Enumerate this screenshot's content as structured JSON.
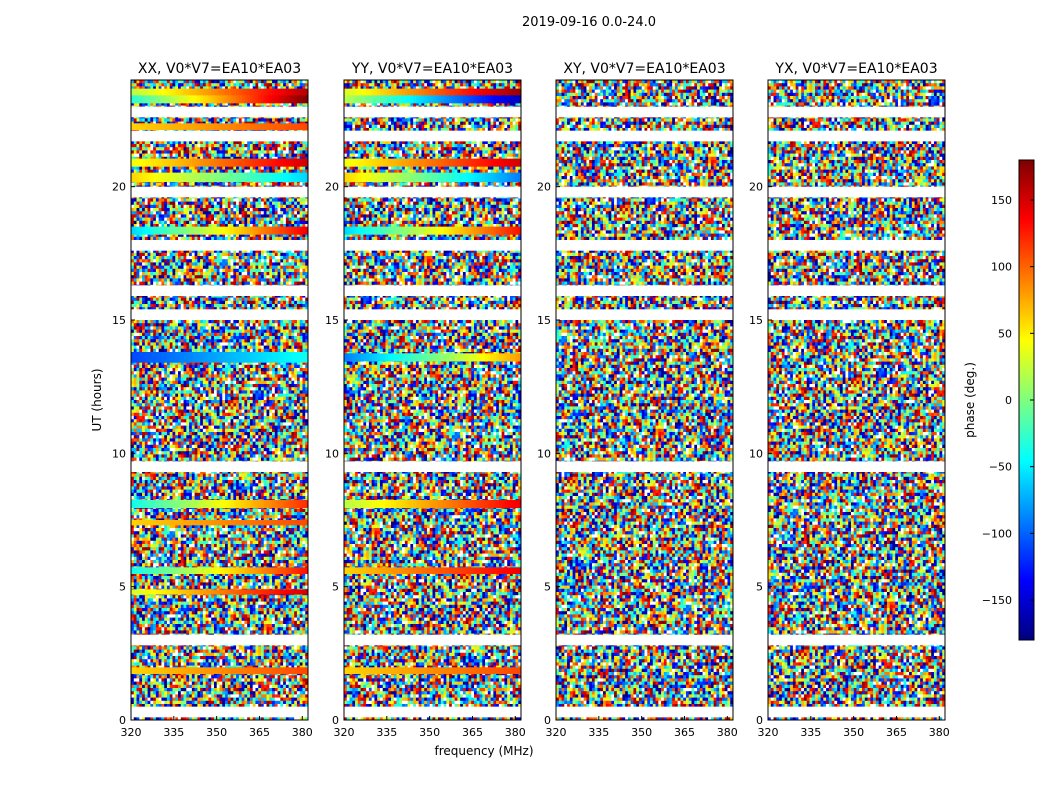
{
  "suptitle": "2019-09-16 0.0-24.0",
  "xlabel": "frequency (MHz)",
  "ylabel": "UT (hours)",
  "colorbar": {
    "label": "phase (deg.)",
    "range": [
      -180,
      180
    ],
    "ticks": [
      -150,
      -100,
      -50,
      0,
      50,
      100,
      150
    ],
    "tick_labels": [
      "−150",
      "−100",
      "−50",
      "0",
      "50",
      "100",
      "150"
    ],
    "colormap": [
      "#00007f",
      "#0000ff",
      "#007fff",
      "#00ffff",
      "#7fff7f",
      "#ffff00",
      "#ff7f00",
      "#ff0000",
      "#7f0000"
    ]
  },
  "chart_data": [
    {
      "type": "heatmap",
      "title": "XX, V0*V7=EA10*EA03",
      "xlim": [
        320,
        382
      ],
      "ylim": [
        0,
        24
      ],
      "xticks": [
        320,
        335,
        350,
        365,
        380
      ],
      "yticks": [
        0,
        5,
        10,
        15,
        20
      ],
      "flagged_hours": [
        0.3,
        3.0,
        9.5,
        15.2,
        16.1,
        17.8,
        19.8,
        21.9,
        22.8
      ],
      "coherent_phase_rows": [
        {
          "ut": 23.3,
          "phase_start": -30,
          "phase_end": 180,
          "thickness": 0.35
        },
        {
          "ut": 23.55,
          "phase_start": 20,
          "phase_end": 160,
          "thickness": 0.25
        },
        {
          "ut": 22.25,
          "phase_start": 60,
          "phase_end": 110,
          "thickness": 0.25
        },
        {
          "ut": 20.9,
          "phase_start": 40,
          "phase_end": 150,
          "thickness": 0.3
        },
        {
          "ut": 20.35,
          "phase_start": 60,
          "phase_end": -60,
          "thickness": 0.35
        },
        {
          "ut": 18.35,
          "phase_start": -60,
          "phase_end": 140,
          "thickness": 0.3
        },
        {
          "ut": 13.6,
          "phase_start": -110,
          "phase_end": -40,
          "thickness": 0.4
        },
        {
          "ut": 8.1,
          "phase_start": -40,
          "phase_end": 120,
          "thickness": 0.3
        },
        {
          "ut": 7.4,
          "phase_start": 60,
          "phase_end": 110,
          "thickness": 0.2
        },
        {
          "ut": 5.6,
          "phase_start": -40,
          "phase_end": 130,
          "thickness": 0.25
        },
        {
          "ut": 4.8,
          "phase_start": 30,
          "phase_end": 150,
          "thickness": 0.2
        },
        {
          "ut": 1.85,
          "phase_start": 60,
          "phase_end": 110,
          "thickness": 0.25
        }
      ]
    },
    {
      "type": "heatmap",
      "title": "YY, V0*V7=EA10*EA03",
      "xlim": [
        320,
        382
      ],
      "ylim": [
        0,
        24
      ],
      "xticks": [
        320,
        335,
        350,
        365,
        380
      ],
      "yticks": [
        0,
        5,
        10,
        15,
        20
      ],
      "flagged_hours": [
        0.3,
        3.0,
        9.5,
        15.2,
        16.1,
        17.8,
        19.8,
        21.9,
        22.8
      ],
      "coherent_phase_rows": [
        {
          "ut": 23.3,
          "phase_start": 20,
          "phase_end": -160,
          "thickness": 0.35
        },
        {
          "ut": 23.55,
          "phase_start": 30,
          "phase_end": 170,
          "thickness": 0.25
        },
        {
          "ut": 20.9,
          "phase_start": 40,
          "phase_end": 150,
          "thickness": 0.3
        },
        {
          "ut": 20.35,
          "phase_start": 60,
          "phase_end": -90,
          "thickness": 0.35
        },
        {
          "ut": 18.35,
          "phase_start": -60,
          "phase_end": 130,
          "thickness": 0.3
        },
        {
          "ut": 13.6,
          "phase_start": -90,
          "phase_end": 80,
          "thickness": 0.3
        },
        {
          "ut": 8.1,
          "phase_start": 20,
          "phase_end": 140,
          "thickness": 0.3
        },
        {
          "ut": 5.6,
          "phase_start": 60,
          "phase_end": 140,
          "thickness": 0.25
        },
        {
          "ut": 1.85,
          "phase_start": 60,
          "phase_end": 110,
          "thickness": 0.25
        }
      ]
    },
    {
      "type": "heatmap",
      "title": "XY, V0*V7=EA10*EA03",
      "xlim": [
        320,
        382
      ],
      "ylim": [
        0,
        24
      ],
      "xticks": [
        320,
        335,
        350,
        365,
        380
      ],
      "yticks": [
        0,
        5,
        10,
        15,
        20
      ],
      "flagged_hours": [
        0.3,
        3.0,
        9.5,
        15.2,
        16.1,
        17.8,
        19.8,
        21.9,
        22.8
      ],
      "coherent_phase_rows": []
    },
    {
      "type": "heatmap",
      "title": "YX, V0*V7=EA10*EA03",
      "xlim": [
        320,
        382
      ],
      "ylim": [
        0,
        24
      ],
      "xticks": [
        320,
        335,
        350,
        365,
        380
      ],
      "yticks": [
        0,
        5,
        10,
        15,
        20
      ],
      "flagged_hours": [
        0.3,
        3.0,
        9.5,
        15.2,
        16.1,
        17.8,
        19.8,
        21.9,
        22.8
      ],
      "coherent_phase_rows": []
    }
  ]
}
